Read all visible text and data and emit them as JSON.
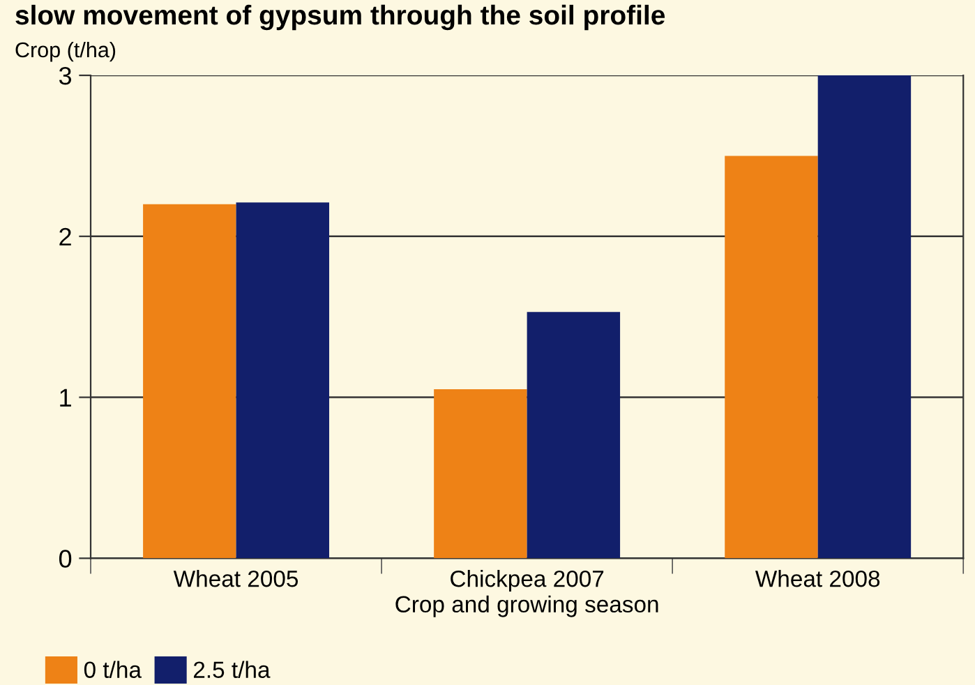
{
  "chart_data": {
    "type": "bar",
    "title": "slow movement of gypsum through the soil profile",
    "ylabel": "Crop (t/ha)",
    "xlabel": "Crop and growing season",
    "categories": [
      "Wheat 2005",
      "Chickpea 2007",
      "Wheat 2008"
    ],
    "series": [
      {
        "name": "0 t/ha",
        "color": "#ee8216",
        "values": [
          2.2,
          1.05,
          2.5
        ]
      },
      {
        "name": "2.5 t/ha",
        "color": "#121f6b",
        "values": [
          2.21,
          1.53,
          3.0
        ]
      }
    ],
    "ylim": [
      0,
      3
    ],
    "yticks": [
      0,
      1,
      2,
      3
    ],
    "grid": "y",
    "legend": "bottom left"
  }
}
